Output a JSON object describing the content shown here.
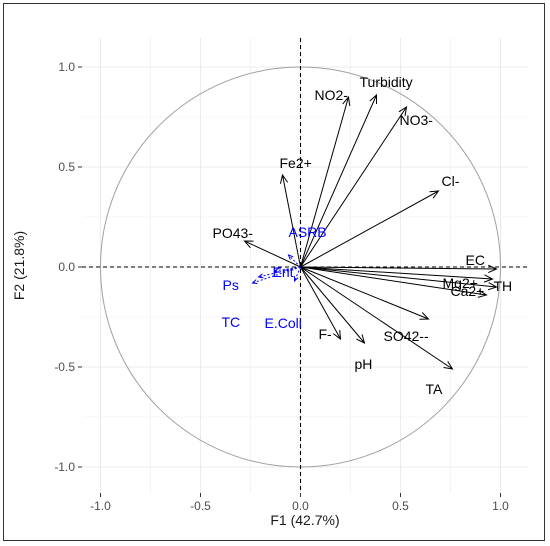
{
  "chart_data": {
    "type": "scatter",
    "subtype": "pca-correlation-circle",
    "xlabel": "F1 (42.7%)",
    "ylabel": "F2 (21.8%)",
    "xlim": [
      -1.0,
      1.0
    ],
    "ylim": [
      -1.0,
      1.0
    ],
    "x_ticks": [
      {
        "value": -1.0,
        "label": "-1.0"
      },
      {
        "value": -0.5,
        "label": "-0.5"
      },
      {
        "value": 0.0,
        "label": "0.0"
      },
      {
        "value": 0.5,
        "label": "0.5"
      },
      {
        "value": 1.0,
        "label": "1.0"
      }
    ],
    "y_ticks": [
      {
        "value": -1.0,
        "label": "-1.0"
      },
      {
        "value": -0.5,
        "label": "-0.5"
      },
      {
        "value": 0.0,
        "label": "0.0"
      },
      {
        "value": 0.5,
        "label": "0.5"
      },
      {
        "value": 1.0,
        "label": "1.0"
      }
    ],
    "grid": true,
    "colors": {
      "active_variable": "#000000",
      "supplementary_variable": "#0000ff",
      "circle": "#a0a0a0",
      "grid": "#ebebeb"
    },
    "variables": [
      {
        "name": "Turbidity",
        "x": 0.38,
        "y": 0.86,
        "group": "active"
      },
      {
        "name": "NO2-",
        "x": 0.24,
        "y": 0.85,
        "group": "active"
      },
      {
        "name": "NO3-",
        "x": 0.53,
        "y": 0.8,
        "group": "active"
      },
      {
        "name": "Fe2+",
        "x": -0.09,
        "y": 0.46,
        "group": "active"
      },
      {
        "name": "Cl-",
        "x": 0.69,
        "y": 0.38,
        "group": "active"
      },
      {
        "name": "EC",
        "x": 0.98,
        "y": -0.01,
        "group": "active"
      },
      {
        "name": "TH",
        "x": 0.98,
        "y": -0.1,
        "group": "active"
      },
      {
        "name": "Mg2+",
        "x": 0.96,
        "y": -0.06,
        "group": "active"
      },
      {
        "name": "Ca2+",
        "x": 0.93,
        "y": -0.14,
        "group": "active"
      },
      {
        "name": "SO42--",
        "x": 0.64,
        "y": -0.26,
        "group": "active"
      },
      {
        "name": "TA",
        "x": 0.76,
        "y": -0.51,
        "group": "active"
      },
      {
        "name": "pH",
        "x": 0.32,
        "y": -0.38,
        "group": "active"
      },
      {
        "name": "F-",
        "x": 0.2,
        "y": -0.36,
        "group": "active"
      },
      {
        "name": "PO43-",
        "x": -0.28,
        "y": 0.13,
        "group": "active"
      },
      {
        "name": "ASRB",
        "x": -0.06,
        "y": 0.06,
        "group": "supplementary"
      },
      {
        "name": "Ent",
        "x": -0.13,
        "y": -0.02,
        "group": "supplementary"
      },
      {
        "name": "Ps",
        "x": -0.21,
        "y": -0.05,
        "group": "supplementary"
      },
      {
        "name": "TC",
        "x": -0.24,
        "y": -0.08,
        "group": "supplementary"
      },
      {
        "name": "E.Coli",
        "x": -0.03,
        "y": -0.07,
        "group": "supplementary"
      }
    ]
  }
}
